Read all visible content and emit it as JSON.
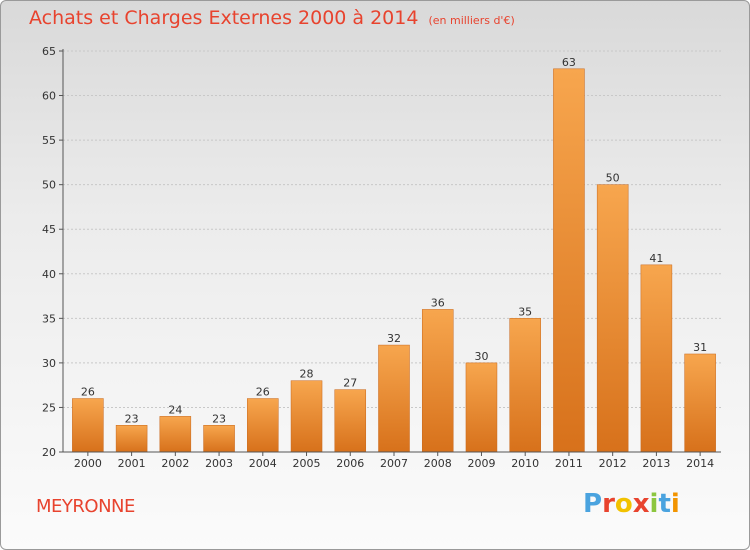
{
  "header": {
    "title": "Achats et Charges Externes 2000 à 2014",
    "subtitle": "(en milliers d'€)"
  },
  "footer": {
    "place": "MEYRONNE",
    "logo_letters": [
      "P",
      "r",
      "o",
      "x",
      "i",
      "t",
      "i"
    ]
  },
  "colors": {
    "title": "#e8432e",
    "bar_top": "#f7a64e",
    "bar_bottom": "#d7711b",
    "logo": [
      "#4aa3df",
      "#e8432e",
      "#f2c200",
      "#e8432e",
      "#8cc63f",
      "#4aa3df",
      "#f29400"
    ]
  },
  "chart_data": {
    "type": "bar",
    "categories": [
      "2000",
      "2001",
      "2002",
      "2003",
      "2004",
      "2005",
      "2006",
      "2007",
      "2008",
      "2009",
      "2010",
      "2011",
      "2012",
      "2013",
      "2014"
    ],
    "values": [
      26,
      23,
      24,
      23,
      26,
      28,
      27,
      32,
      36,
      30,
      35,
      63,
      50,
      41,
      31
    ],
    "ylim": [
      20,
      65
    ],
    "yticks": [
      20,
      25,
      30,
      35,
      40,
      45,
      50,
      55,
      60,
      65
    ],
    "grid": true
  }
}
